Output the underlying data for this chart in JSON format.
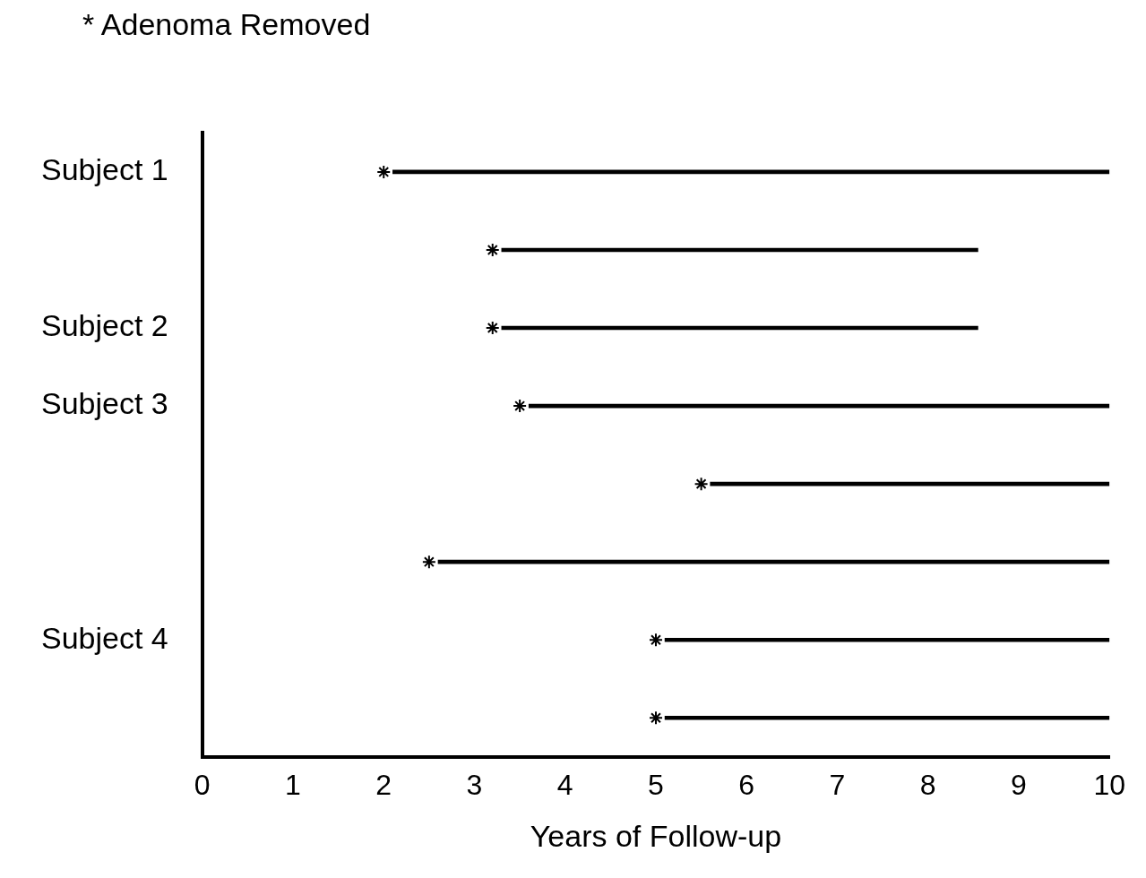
{
  "chart_data": {
    "type": "bar",
    "orientation": "horizontal",
    "annotations": [
      "* Adenoma Removed"
    ],
    "xlabel": "Years of Follow-up",
    "categories": [
      "Subject 1",
      null,
      "Subject 2",
      "Subject 3",
      null,
      null,
      "Subject 4",
      null
    ],
    "series": [
      {
        "color": "#000000",
        "base": [
          2.1,
          3.3,
          3.3,
          3.6,
          5.6,
          2.6,
          5.1,
          5.1
        ],
        "values": [
          7.9,
          5.25,
          5.25,
          6.4,
          4.4,
          7.4,
          4.9,
          4.9
        ]
      },
      {
        "type": "scatter",
        "color": "#000000",
        "marker": "cross",
        "values": [
          2.0,
          3.2,
          3.2,
          3.5,
          5.5,
          2.5,
          5.0,
          5.0
        ]
      }
    ],
    "xlim": [
      0,
      10
    ],
    "xticks": [
      0,
      1,
      2,
      3,
      4,
      5,
      6,
      7,
      8,
      9,
      10
    ],
    "grid": false,
    "legend": false
  }
}
